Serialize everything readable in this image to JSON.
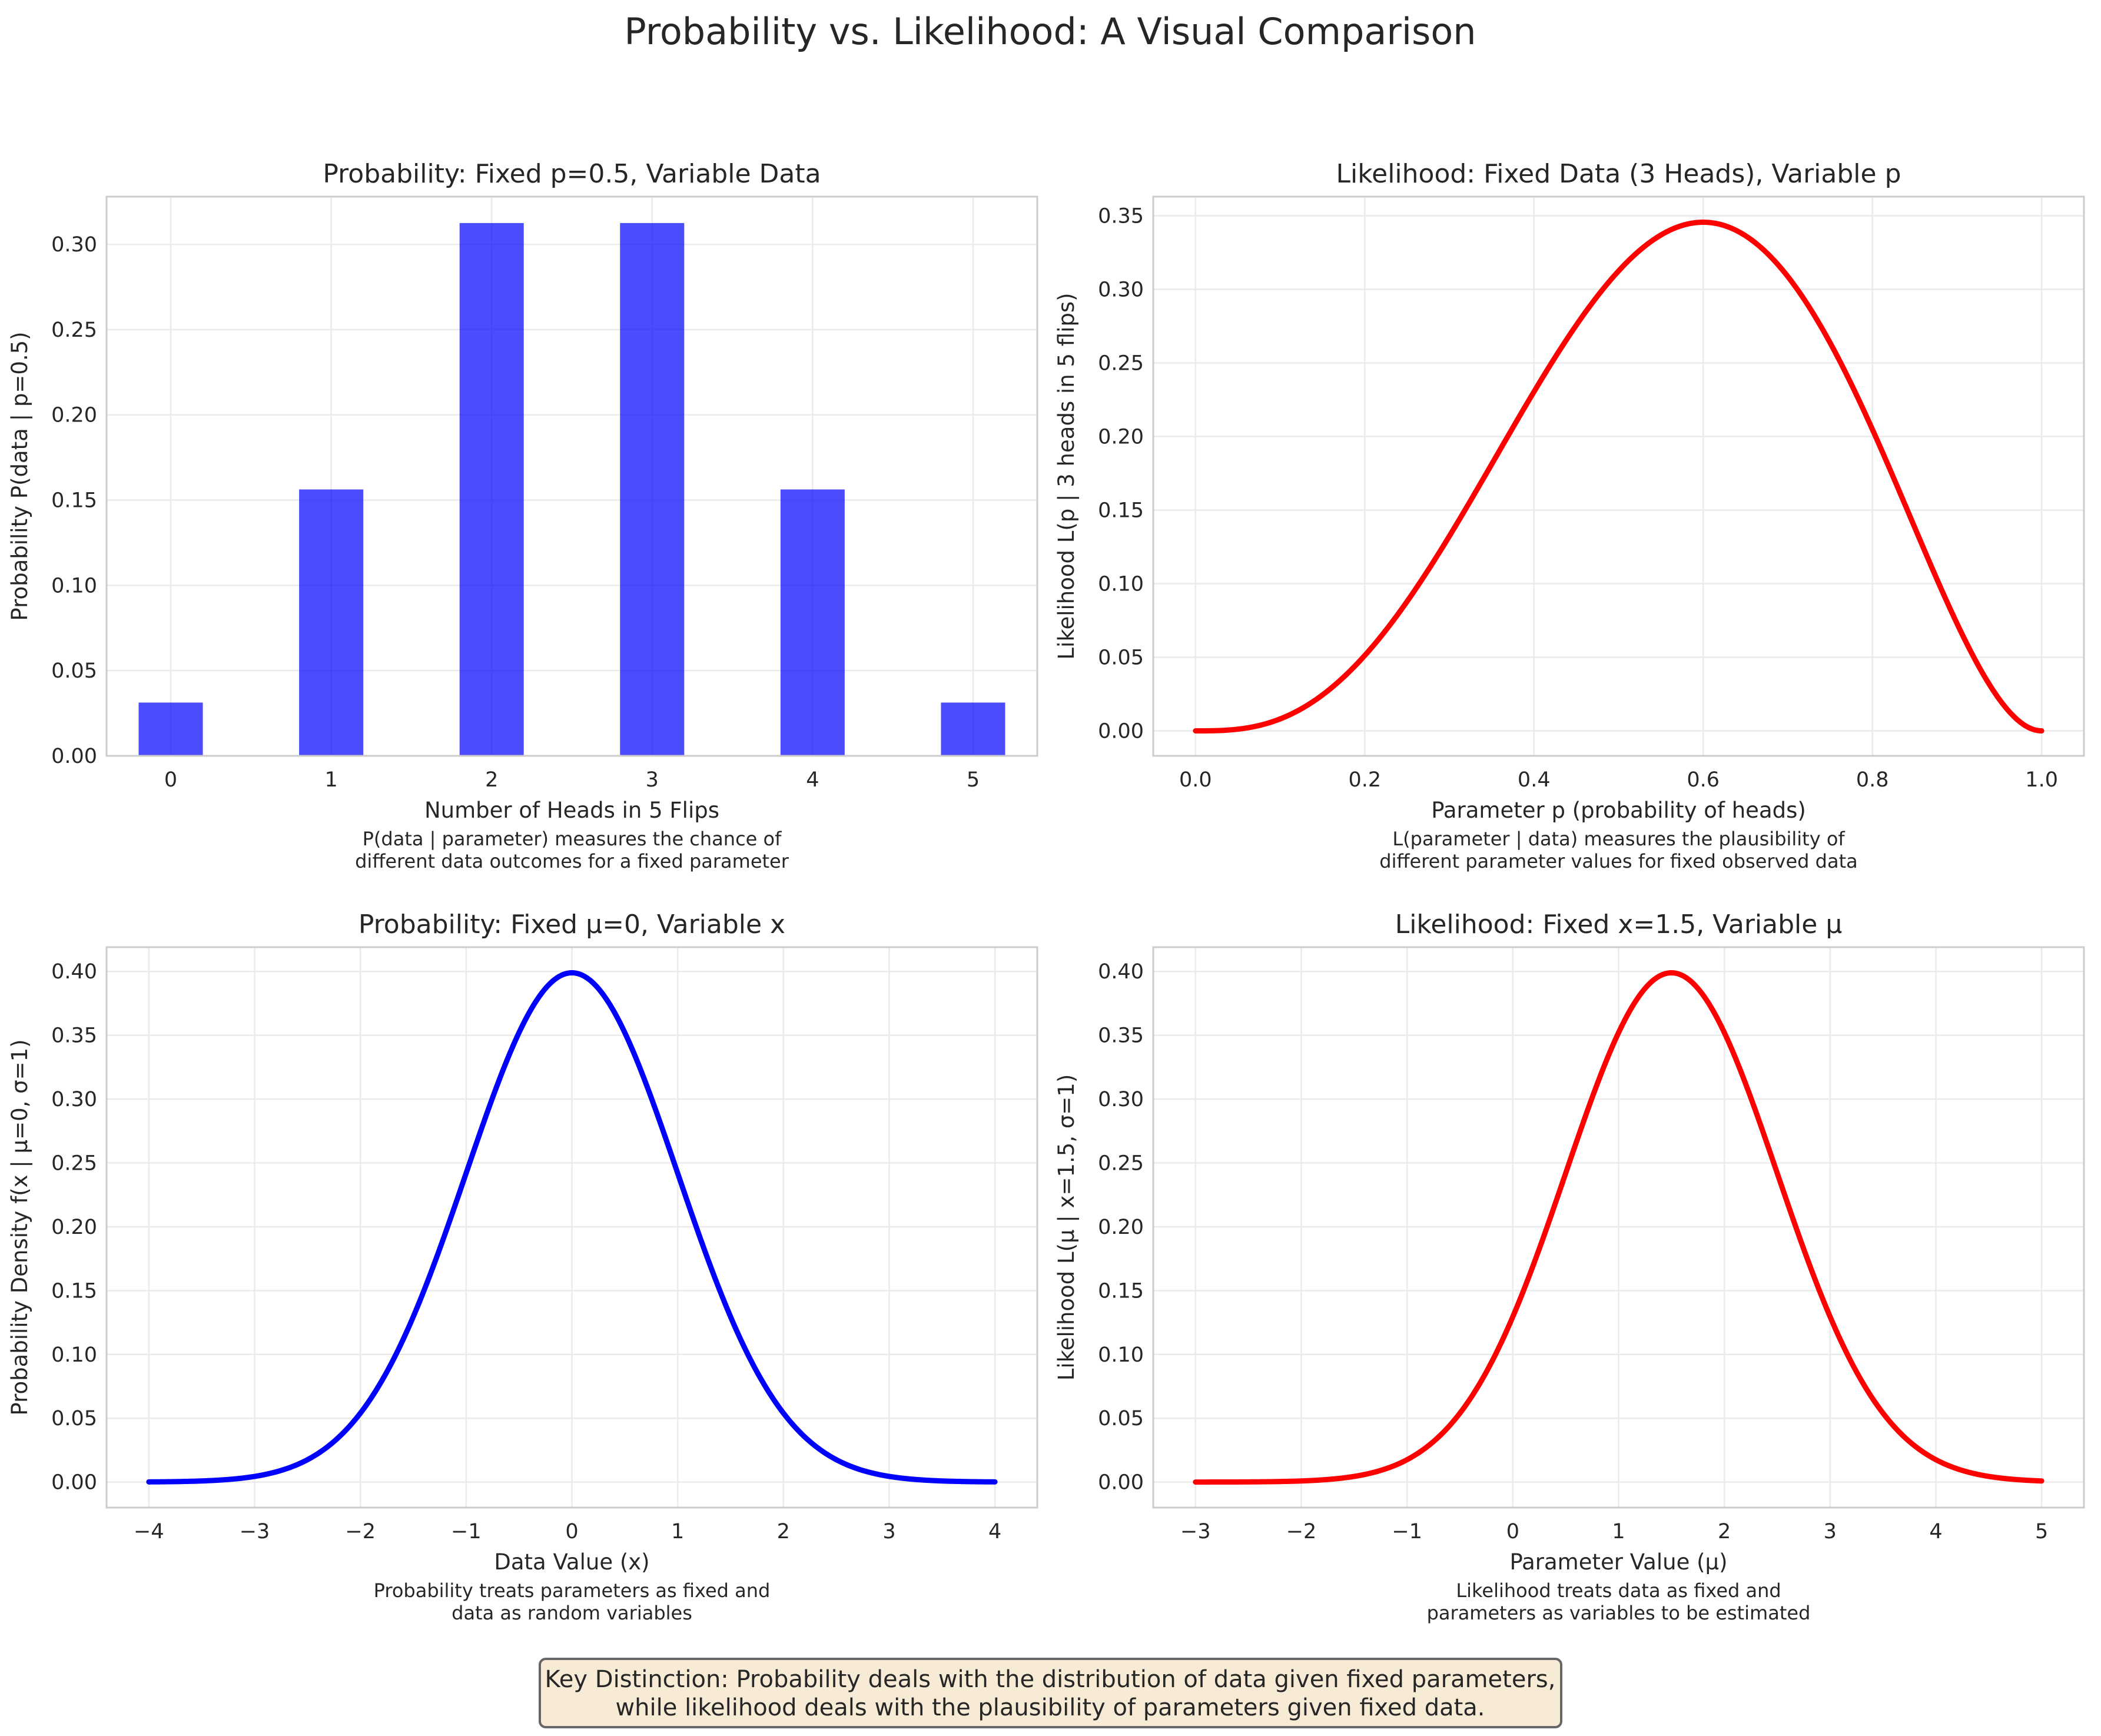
{
  "figure": {
    "title": "Probability vs. Likelihood: A Visual Comparison",
    "key_note_lines": [
      "Key Distinction: Probability deals with the distribution of data given fixed parameters,",
      "while likelihood deals with the plausibility of parameters given fixed data."
    ],
    "key_note_style": {
      "background": "#f7ebd5",
      "border": "#666666"
    }
  },
  "chart_data": [
    {
      "id": "binomial-probability",
      "type": "bar",
      "title": "Probability: Fixed p=0.5, Variable Data",
      "xlabel": "Number of Heads in 5 Flips",
      "ylabel": "Probability P(data | p=0.5)",
      "caption_lines": [
        "P(data | parameter) measures the chance of",
        "different data outcomes for a fixed parameter"
      ],
      "categories": [
        "0",
        "1",
        "2",
        "3",
        "4",
        "5"
      ],
      "values": [
        0.03125,
        0.15625,
        0.3125,
        0.3125,
        0.15625,
        0.03125
      ],
      "xlim": [
        -0.4,
        5.4
      ],
      "ylim": [
        0,
        0.328
      ],
      "xticks": [
        0,
        1,
        2,
        3,
        4,
        5
      ],
      "xtick_labels": [
        "0",
        "1",
        "2",
        "3",
        "4",
        "5"
      ],
      "yticks": [
        0,
        0.05,
        0.1,
        0.15,
        0.2,
        0.25,
        0.3
      ],
      "ytick_labels": [
        "0.00",
        "0.05",
        "0.10",
        "0.15",
        "0.20",
        "0.25",
        "0.30"
      ],
      "color": "#0000ff",
      "bar_width": 0.4,
      "grid": true
    },
    {
      "id": "binomial-likelihood",
      "type": "line",
      "title": "Likelihood: Fixed Data (3 Heads), Variable p",
      "xlabel": "Parameter p (probability of heads)",
      "ylabel": "Likelihood L(p | 3 heads in 5 flips)",
      "caption_lines": [
        "L(parameter | data) measures the plausibility of",
        "different parameter values for fixed observed data"
      ],
      "function": "10*p^3*(1-p)^2",
      "x_range": [
        0,
        1
      ],
      "xlim": [
        -0.05,
        1.05
      ],
      "ylim": [
        -0.017,
        0.363
      ],
      "xticks": [
        0,
        0.2,
        0.4,
        0.6,
        0.8,
        1.0
      ],
      "xtick_labels": [
        "0.0",
        "0.2",
        "0.4",
        "0.6",
        "0.8",
        "1.0"
      ],
      "yticks": [
        0,
        0.05,
        0.1,
        0.15,
        0.2,
        0.25,
        0.3,
        0.35
      ],
      "ytick_labels": [
        "0.00",
        "0.05",
        "0.10",
        "0.15",
        "0.20",
        "0.25",
        "0.30",
        "0.35"
      ],
      "color": "#ff0000",
      "peak": {
        "x": 0.6,
        "y": 0.3456
      },
      "grid": true
    },
    {
      "id": "normal-probability",
      "type": "line",
      "title": "Probability: Fixed μ=0, Variable x",
      "xlabel": "Data Value (x)",
      "ylabel": "Probability Density f(x | μ=0, σ=1)",
      "caption_lines": [
        "Probability treats parameters as fixed and",
        "data as random variables"
      ],
      "function": "normal_pdf(x, mu=0, sigma=1)",
      "x_range": [
        -4,
        4
      ],
      "xlim": [
        -4.4,
        4.4
      ],
      "ylim": [
        -0.02,
        0.419
      ],
      "xticks": [
        -4,
        -3,
        -2,
        -1,
        0,
        1,
        2,
        3,
        4
      ],
      "xtick_labels": [
        "−4",
        "−3",
        "−2",
        "−1",
        "0",
        "1",
        "2",
        "3",
        "4"
      ],
      "yticks": [
        0,
        0.05,
        0.1,
        0.15,
        0.2,
        0.25,
        0.3,
        0.35,
        0.4
      ],
      "ytick_labels": [
        "0.00",
        "0.05",
        "0.10",
        "0.15",
        "0.20",
        "0.25",
        "0.30",
        "0.35",
        "0.40"
      ],
      "color": "#0000ff",
      "peak": {
        "x": 0,
        "y": 0.3989
      },
      "grid": true
    },
    {
      "id": "normal-likelihood",
      "type": "line",
      "title": "Likelihood: Fixed x=1.5, Variable μ",
      "xlabel": "Parameter Value (μ)",
      "ylabel": "Likelihood L(μ | x=1.5, σ=1)",
      "caption_lines": [
        "Likelihood treats data as fixed and",
        "parameters as variables to be estimated"
      ],
      "function": "normal_pdf(1.5, mu, sigma=1)",
      "x_range": [
        -3,
        5
      ],
      "xlim": [
        -3.4,
        5.4
      ],
      "ylim": [
        -0.02,
        0.419
      ],
      "xticks": [
        -3,
        -2,
        -1,
        0,
        1,
        2,
        3,
        4,
        5
      ],
      "xtick_labels": [
        "−3",
        "−2",
        "−1",
        "0",
        "1",
        "2",
        "3",
        "4",
        "5"
      ],
      "yticks": [
        0,
        0.05,
        0.1,
        0.15,
        0.2,
        0.25,
        0.3,
        0.35,
        0.4
      ],
      "ytick_labels": [
        "0.00",
        "0.05",
        "0.10",
        "0.15",
        "0.20",
        "0.25",
        "0.30",
        "0.35",
        "0.40"
      ],
      "color": "#ff0000",
      "peak": {
        "x": 1.5,
        "y": 0.3989
      },
      "grid": true
    }
  ]
}
